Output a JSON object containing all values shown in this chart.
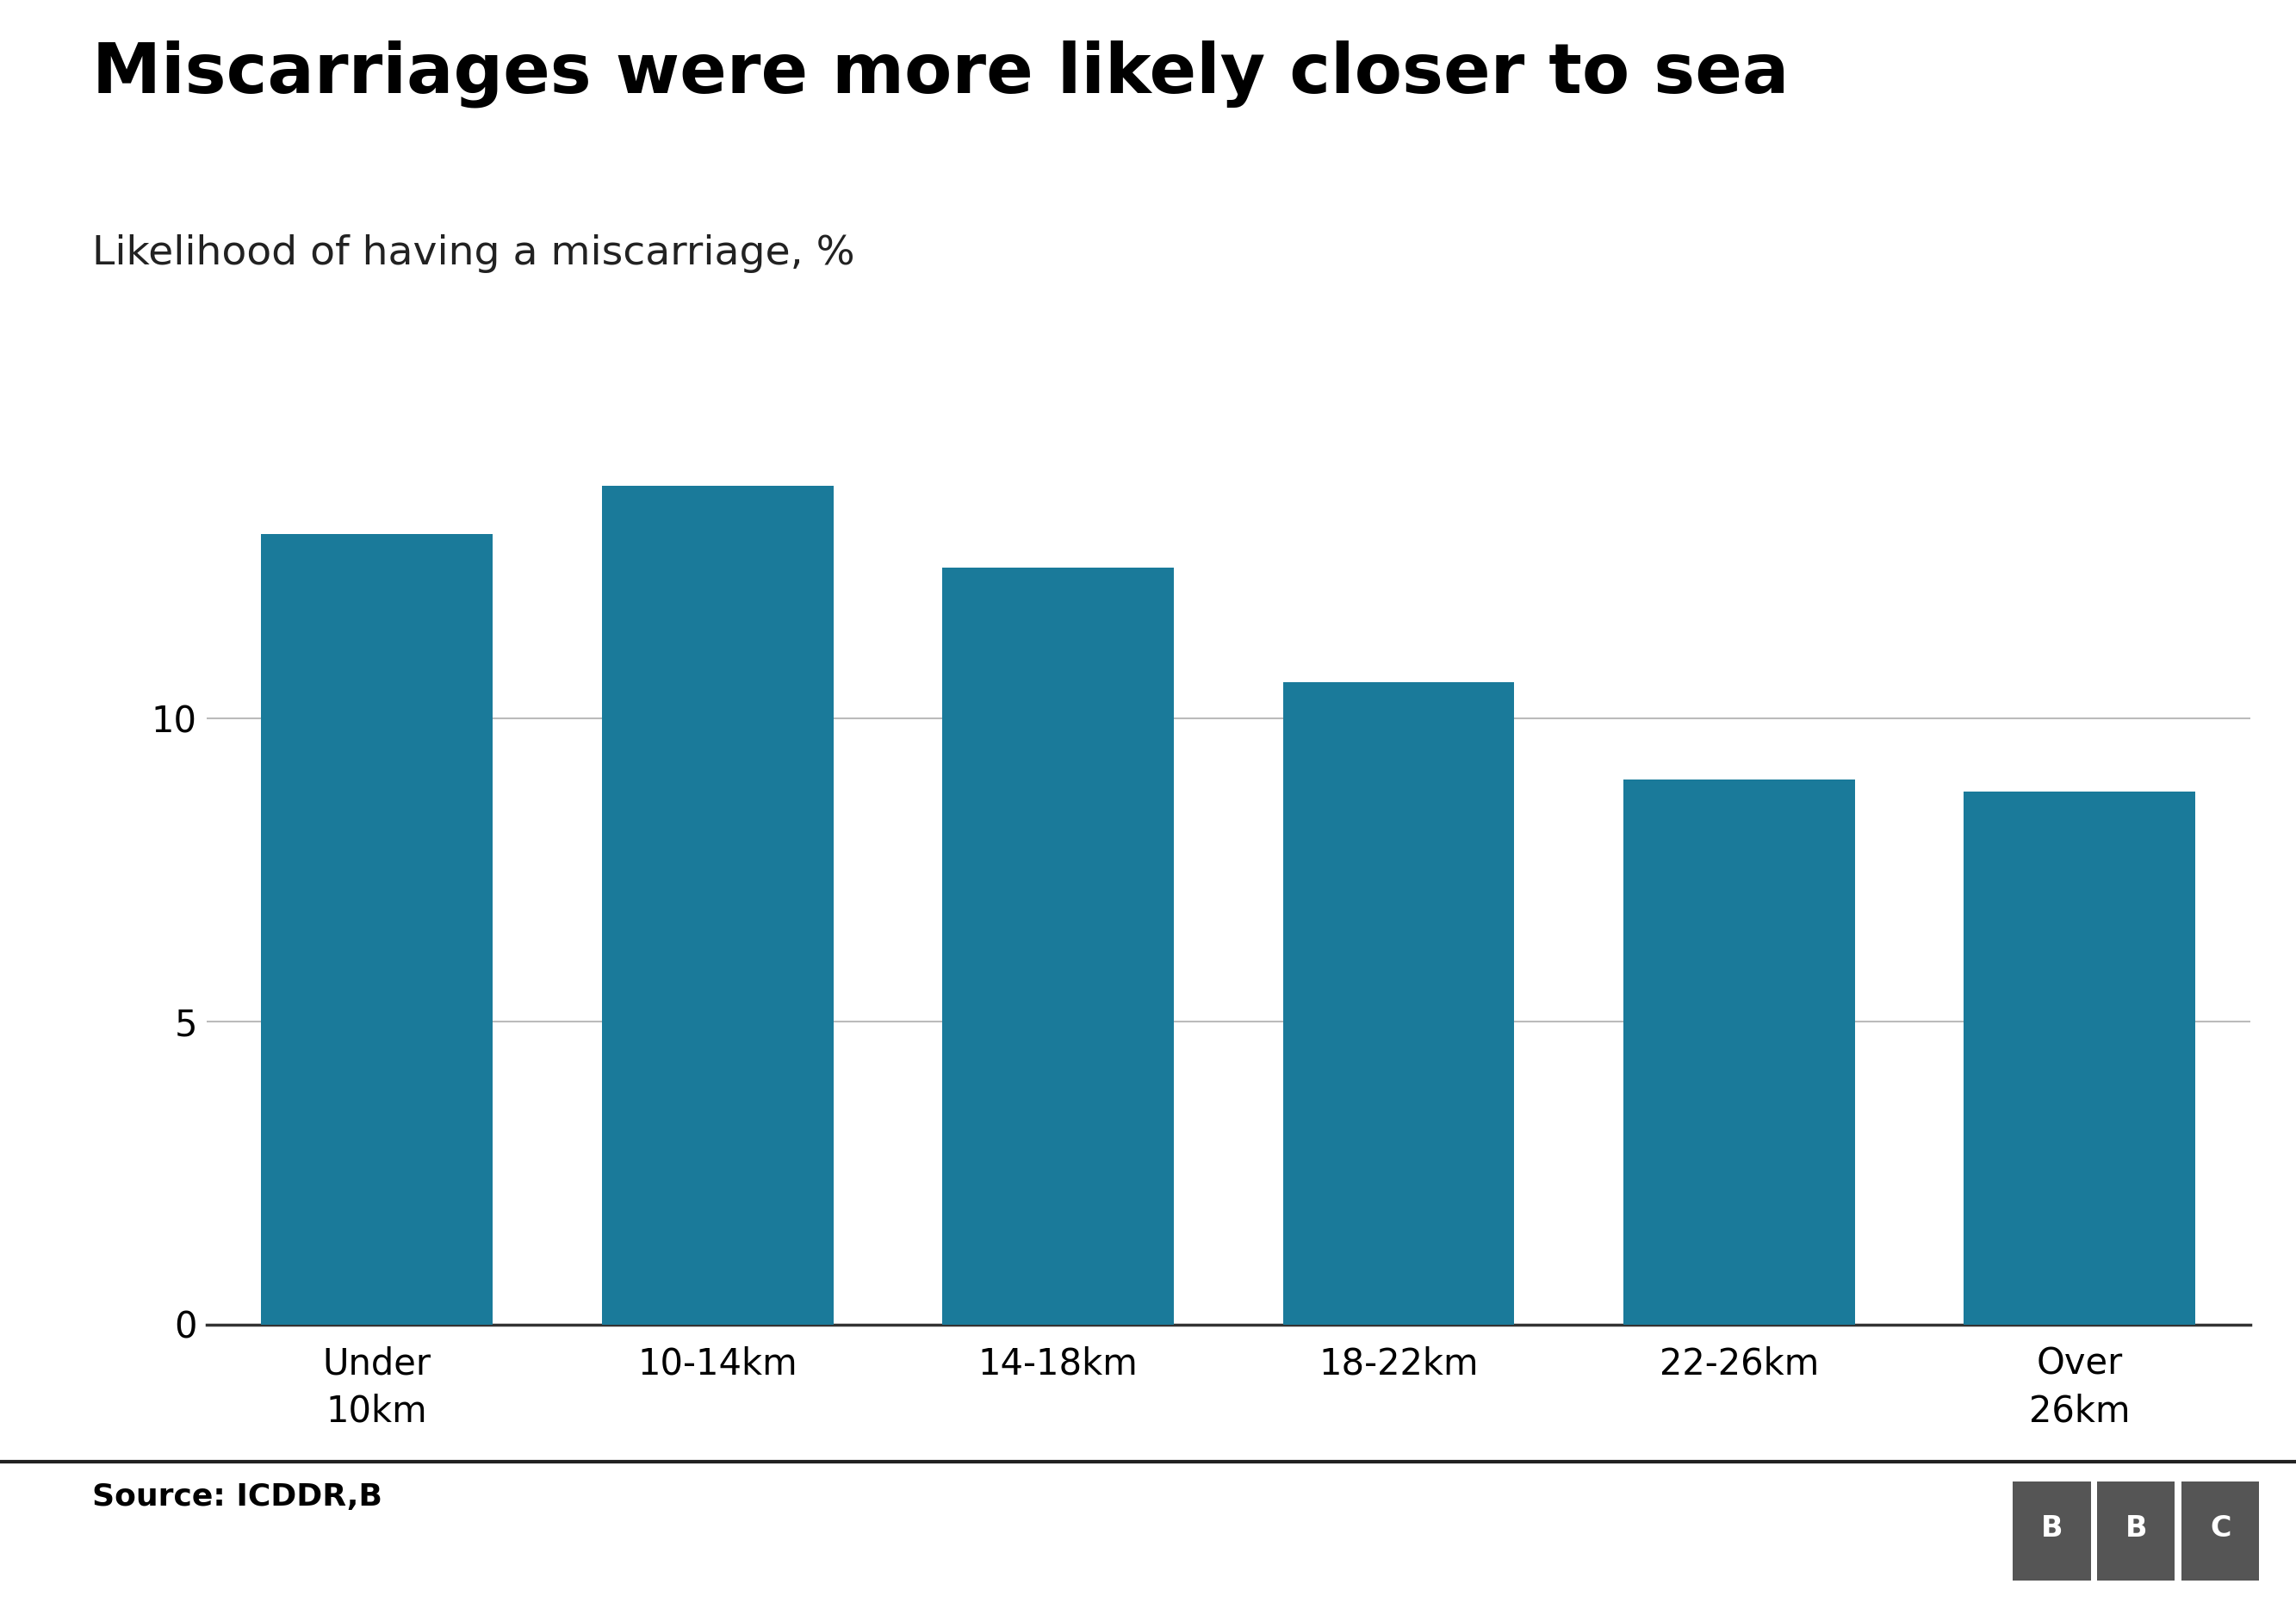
{
  "categories": [
    "Under\n10km",
    "10-14km",
    "14-18km",
    "18-22km",
    "22-26km",
    "Over\n26km"
  ],
  "values": [
    13.05,
    13.85,
    12.5,
    10.6,
    9.0,
    8.8
  ],
  "bar_color": "#1a7a9a",
  "title": "Miscarriages were more likely closer to sea",
  "subtitle": "Likelihood of having a miscarriage, %",
  "source": "Source: ICDDR,B",
  "ylim": [
    0,
    16
  ],
  "yticks": [
    0,
    5,
    10
  ],
  "title_fontsize": 58,
  "subtitle_fontsize": 34,
  "tick_fontsize": 30,
  "source_fontsize": 26,
  "background_color": "#ffffff",
  "grid_color": "#bbbbbb",
  "bar_width": 0.68
}
